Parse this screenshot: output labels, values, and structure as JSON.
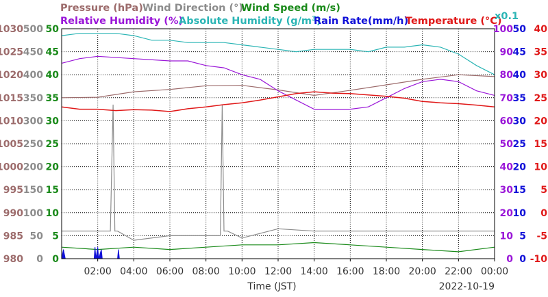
{
  "header": {
    "pressure": "Pressure (hPa)",
    "wind_direction": "Wind Direction (°)",
    "wind_speed": "Wind Speed (m/s)",
    "relative_humidity": "Relative Humidity (%)",
    "absolute_humidity": "Absolute Humidity (g/m",
    "absolute_humidity_sup": "3",
    "absolute_humidity_close": ")",
    "rain_rate": "Rain Rate(mm/h)",
    "temperature": "Temperature (°C)",
    "scale_note": "x0.1"
  },
  "x_axis": {
    "label": "Time (JST)",
    "date": "2022-10-19"
  },
  "colors": {
    "pressure": "#9c6b6b",
    "wind_direction": "#8c8c8c",
    "wind_speed": "#1a8a1a",
    "relative_humidity": "#9a16d8",
    "absolute_humidity": "#2bb5b5",
    "rain_rate": "#1010d8",
    "temperature": "#e01818"
  },
  "chart_data": {
    "type": "line",
    "x_domain": [
      "00:00",
      "24:00"
    ],
    "x_ticks": [
      "02:00",
      "04:00",
      "06:00",
      "08:00",
      "10:00",
      "12:00",
      "14:00",
      "16:00",
      "18:00",
      "20:00",
      "22:00",
      "00:00"
    ],
    "grid": true,
    "axes": {
      "pressure_hPa": {
        "min": 980,
        "max": 1030,
        "ticks": [
          "1030",
          "1025",
          "1020",
          "1015",
          "1010",
          "1005",
          "1000",
          "995",
          "990",
          "985",
          "980"
        ]
      },
      "wind_direction_deg": {
        "min": 0,
        "max": 500,
        "ticks": [
          "500",
          "450",
          "400",
          "350",
          "300",
          "250",
          "200",
          "150",
          "100",
          "50",
          "0"
        ]
      },
      "wind_speed_ms": {
        "min": 0,
        "max": 50,
        "ticks": [
          "50",
          "45",
          "40",
          "35",
          "30",
          "25",
          "20",
          "15",
          "10",
          "5",
          "0"
        ]
      },
      "humidity": {
        "min": 0,
        "max": 100,
        "ticks": [
          "100",
          "90",
          "80",
          "70",
          "60",
          "50",
          "40",
          "30",
          "20",
          "10",
          "0"
        ]
      },
      "rain_rate_mmh": {
        "min": 0,
        "max": 50,
        "ticks": [
          "50",
          "45",
          "40",
          "35",
          "30",
          "25",
          "20",
          "15",
          "10",
          "5",
          "0"
        ]
      },
      "temperature_C": {
        "min": -10,
        "max": 40,
        "ticks": [
          "40",
          "35",
          "30",
          "25",
          "20",
          "15",
          "10",
          "5",
          "0",
          "-5",
          "-10"
        ]
      }
    },
    "series": [
      {
        "name": "Pressure (hPa)",
        "axis": "pressure_hPa",
        "x": [
          0,
          2,
          4,
          6,
          8,
          10,
          12,
          14,
          16,
          18,
          20,
          22,
          24
        ],
        "y": [
          1015.0,
          1015.1,
          1016.3,
          1016.8,
          1017.6,
          1017.7,
          1016.7,
          1015.5,
          1016.6,
          1017.8,
          1019.0,
          1020.0,
          1019.6
        ]
      },
      {
        "name": "Wind Direction (°)",
        "axis": "wind_direction_deg",
        "x": [
          0,
          1,
          2,
          2.7,
          2.85,
          2.95,
          3.1,
          4,
          6,
          8,
          8.8,
          8.9,
          9.0,
          9.2,
          10,
          12,
          14,
          16,
          18,
          20,
          22,
          24
        ],
        "y": [
          60,
          60,
          60,
          60,
          335,
          60,
          60,
          40,
          50,
          50,
          50,
          335,
          60,
          60,
          45,
          65,
          60,
          60,
          60,
          60,
          60,
          60
        ]
      },
      {
        "name": "Wind Speed (m/s)",
        "axis": "wind_speed_ms",
        "x": [
          0,
          2,
          4,
          6,
          8,
          10,
          12,
          14,
          16,
          18,
          20,
          22,
          24
        ],
        "y": [
          2.5,
          2.0,
          2.5,
          2.0,
          2.5,
          3.0,
          3.0,
          3.5,
          3.0,
          2.5,
          2.0,
          1.5,
          2.5
        ]
      },
      {
        "name": "Relative Humidity (%)",
        "axis": "humidity",
        "x": [
          0,
          1,
          2,
          4,
          6,
          7,
          8,
          9,
          10,
          11,
          12,
          13,
          14,
          15,
          16,
          17,
          18,
          19,
          20,
          21,
          22,
          23,
          24
        ],
        "y": [
          85,
          87,
          88,
          87,
          86,
          86,
          84,
          83,
          80,
          78,
          73,
          69,
          65,
          65,
          65,
          66,
          70,
          74,
          77,
          78,
          77,
          73,
          71
        ]
      },
      {
        "name": "Absolute Humidity (g/m3) x0.1",
        "axis": "humidity",
        "x": [
          0,
          1,
          2,
          3,
          4,
          5,
          6,
          7,
          8,
          9,
          10,
          11,
          12,
          13,
          14,
          15,
          16,
          17,
          18,
          19,
          20,
          21,
          22,
          23,
          24
        ],
        "y": [
          97,
          98,
          98,
          98,
          97,
          95,
          95,
          94,
          94,
          94,
          93,
          92,
          91,
          90,
          91,
          91,
          91,
          90,
          92,
          92,
          93,
          92,
          89,
          84,
          80
        ]
      },
      {
        "name": "Rain Rate(mm/h)",
        "axis": "rain_rate_mmh",
        "x": [
          0,
          0.1,
          0.2,
          1.8,
          1.85,
          1.9,
          2.0,
          2.05,
          2.2,
          2.25,
          2.3,
          3.1,
          3.15,
          3.2
        ],
        "y": [
          0,
          2,
          0,
          0,
          2.5,
          0,
          2.5,
          0,
          2.0,
          0,
          0,
          0,
          2.0,
          0
        ]
      },
      {
        "name": "Temperature (°C)",
        "axis": "temperature_C",
        "x": [
          0,
          1,
          2,
          3,
          4,
          5,
          6,
          7,
          8,
          9,
          10,
          11,
          12,
          13,
          14,
          15,
          16,
          17,
          18,
          19,
          20,
          21,
          22,
          23,
          24
        ],
        "y": [
          23.0,
          22.5,
          22.5,
          22.2,
          22.4,
          22.3,
          22.0,
          22.6,
          23.0,
          23.5,
          23.9,
          24.5,
          25.2,
          25.9,
          26.3,
          26.0,
          25.9,
          25.6,
          25.3,
          24.9,
          24.2,
          23.9,
          23.7,
          23.4,
          23.0
        ]
      }
    ]
  }
}
